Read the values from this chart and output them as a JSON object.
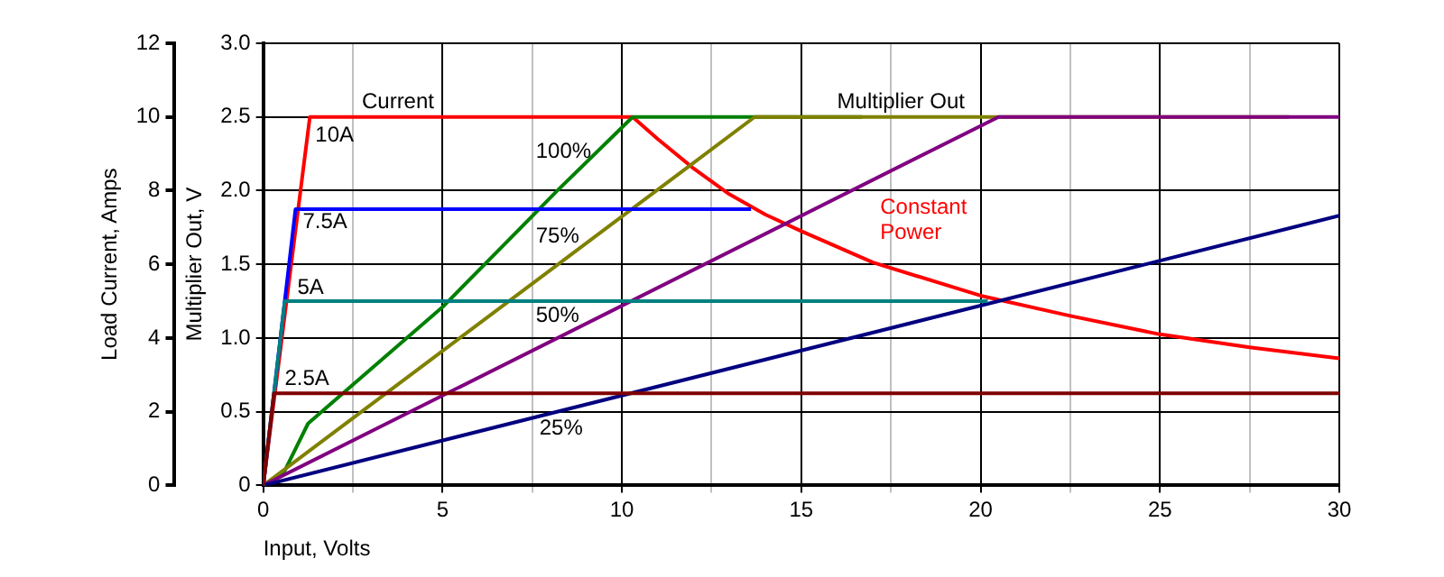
{
  "chart_data": {
    "type": "line",
    "xlabel": "Input, Volts",
    "ylabel": "Load Current, Amps",
    "y2label": "Multiplier Out, V",
    "xlim": [
      0,
      30
    ],
    "xticks": [
      0,
      {
        "value": 2.5,
        "label": null
      },
      5,
      {
        "value": 7.5,
        "label": null
      },
      10,
      {
        "value": 12.5,
        "label": null
      },
      15,
      {
        "value": 17.5,
        "label": null
      },
      20,
      {
        "value": 22.5,
        "label": null
      },
      25,
      {
        "value": 27.5,
        "label": null
      },
      30
    ],
    "ylim": [
      0,
      12
    ],
    "yticks": [
      0,
      2,
      4,
      6,
      8,
      10,
      12
    ],
    "y2lim": [
      0,
      3
    ],
    "y2ticks": [
      0,
      {
        "value": 0.5,
        "label": "0.5"
      },
      {
        "value": 1,
        "label": "1.0"
      },
      {
        "value": 1.5,
        "label": "1.5"
      },
      {
        "value": 2,
        "label": "2.0"
      },
      {
        "value": 2.5,
        "label": "2.5"
      },
      {
        "value": 3,
        "label": "3.0"
      }
    ],
    "grid": true,
    "legend": false,
    "marker": "none",
    "line_style": "solid",
    "series": [
      {
        "name": "2.5A",
        "color": "#800000",
        "x": [
          0,
          0.3,
          30
        ],
        "values": [
          0,
          2.5,
          2.5
        ]
      },
      {
        "name": "5A",
        "color": "#008080",
        "x": [
          0,
          0.6,
          20.2
        ],
        "values": [
          0,
          5,
          5
        ]
      },
      {
        "name": "7.5A",
        "color": "#0000ff",
        "x": [
          0,
          0.9,
          13.6
        ],
        "values": [
          0,
          7.5,
          7.5
        ]
      },
      {
        "name": "25%",
        "color": "#000080",
        "axis": "y2",
        "x": [
          0,
          30
        ],
        "values": [
          0,
          1.83
        ]
      },
      {
        "name": "50%",
        "color": "#800080",
        "axis": "y2",
        "x": [
          0,
          20.5,
          30
        ],
        "values": [
          0,
          2.5,
          2.5
        ]
      },
      {
        "name": "75%",
        "color": "#808000",
        "axis": "y2",
        "x": [
          0,
          13.7,
          28.6
        ],
        "values": [
          0,
          2.5,
          2.5
        ]
      },
      {
        "name": "100%",
        "color": "#008000",
        "axis": "y2",
        "x": [
          0,
          0.6,
          1.25,
          5,
          8.2,
          10.3,
          16.7
        ],
        "values": [
          0,
          0.1,
          0.42,
          1.21,
          2.0,
          2.5,
          2.5
        ]
      },
      {
        "name": "10A",
        "color": "#ff0000",
        "x": [
          0,
          1.3,
          10.3
        ],
        "values": [
          0,
          10,
          10
        ]
      },
      {
        "name": "Constant Power",
        "color": "#ff0000",
        "x": [
          10.3,
          11,
          12,
          13,
          14,
          15,
          17,
          20,
          22.5,
          25,
          27.5,
          30
        ],
        "values": [
          10,
          9.4,
          8.6,
          7.9,
          7.35,
          6.9,
          6.05,
          5.15,
          4.6,
          4.1,
          3.75,
          3.45
        ]
      }
    ],
    "annotations": [
      "Current",
      "Multiplier Out"
    ]
  }
}
